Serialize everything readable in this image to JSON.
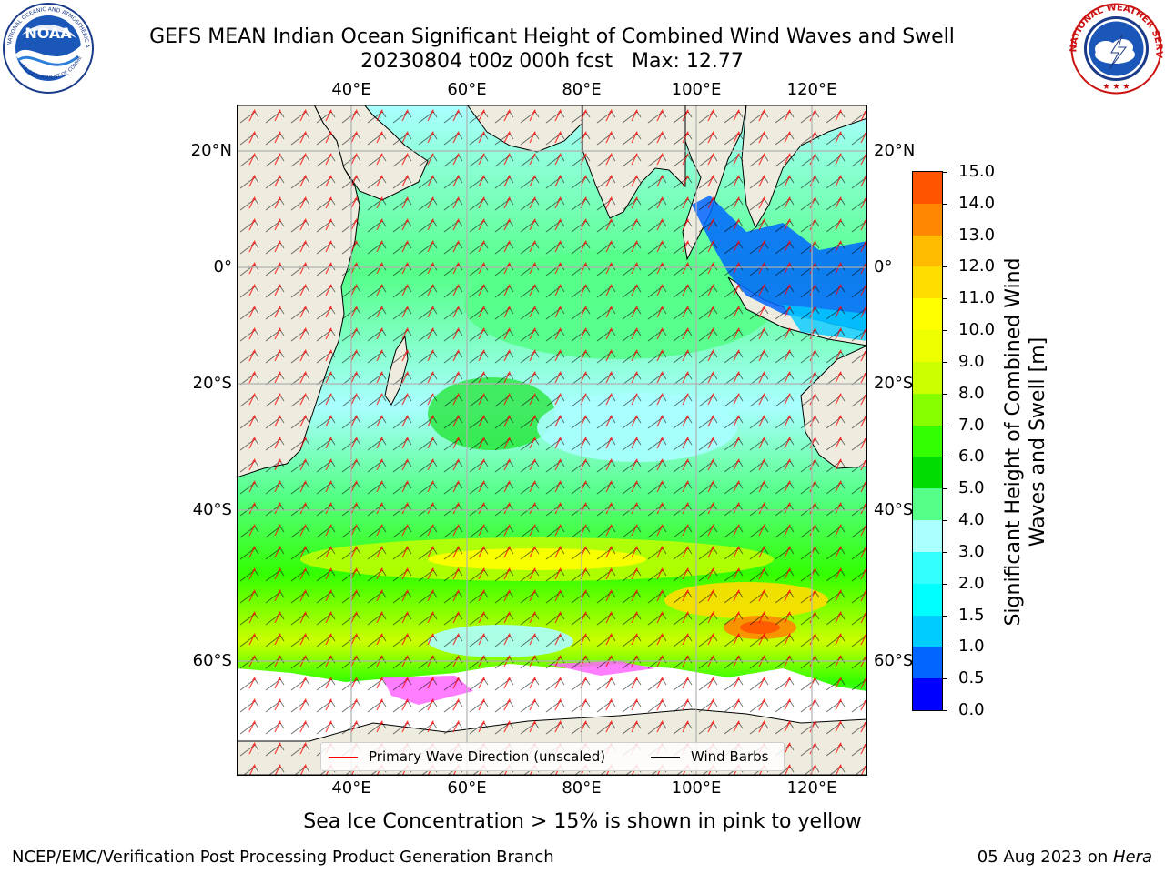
{
  "header": {
    "title_line1": "GEFS MEAN Indian Ocean Significant Height of Combined Wind Waves and Swell",
    "title_line2": "20230804 t00z 000h fcst   Max: 12.77"
  },
  "logos": {
    "noaa_text": "NOAA",
    "noaa_ring_text": "NATIONAL OCEANIC AND ATMOSPHERIC ADMINISTRATION",
    "noaa_ring_bottom": "U.S. DEPARTMENT OF COMMERCE",
    "nws_ring_text": "NATIONAL WEATHER SERVICE"
  },
  "map": {
    "lon_ticks": [
      "40°E",
      "60°E",
      "80°E",
      "100°E",
      "120°E"
    ],
    "lat_ticks_left": [
      "20°N",
      "0°",
      "20°S",
      "40°S",
      "60°S"
    ],
    "lat_ticks_right": [
      "20°N",
      "0°",
      "20°S",
      "40°S",
      "60°S"
    ],
    "colors": {
      "land": "#eeecdf",
      "ice": "#ffffff",
      "grid": "#b0b0b0",
      "wave_dir": "#ff0000",
      "barb": "#000000"
    }
  },
  "legend": {
    "wave": "Primary Wave Direction (unscaled)",
    "barbs": "Wind Barbs"
  },
  "colorbar": {
    "label": "Significant Height of Combined Wind Waves and Swell [m]",
    "ticks": [
      "15.0",
      "14.0",
      "13.0",
      "12.0",
      "11.0",
      "10.0",
      "9.0",
      "8.0",
      "7.0",
      "6.0",
      "5.0",
      "4.0",
      "3.0",
      "2.0",
      "1.5",
      "1.0",
      "0.5",
      "0.0"
    ],
    "colors": [
      "#0000ff",
      "#0066ff",
      "#00ccff",
      "#00ffff",
      "#33ffff",
      "#aaffff",
      "#55ff88",
      "#00dd00",
      "#33ff00",
      "#88ff00",
      "#ccff00",
      "#eeff00",
      "#ffff00",
      "#ffdd00",
      "#ffbb00",
      "#ff8800",
      "#ff5500",
      "#ff2200",
      "#ff0000"
    ]
  },
  "caption": "Sea Ice Concentration > 15% is shown in pink to yellow",
  "footer": {
    "left": "NCEP/EMC/Verification Post Processing Product Generation Branch",
    "date": "05 Aug 2023 on ",
    "machine": "Hera"
  }
}
